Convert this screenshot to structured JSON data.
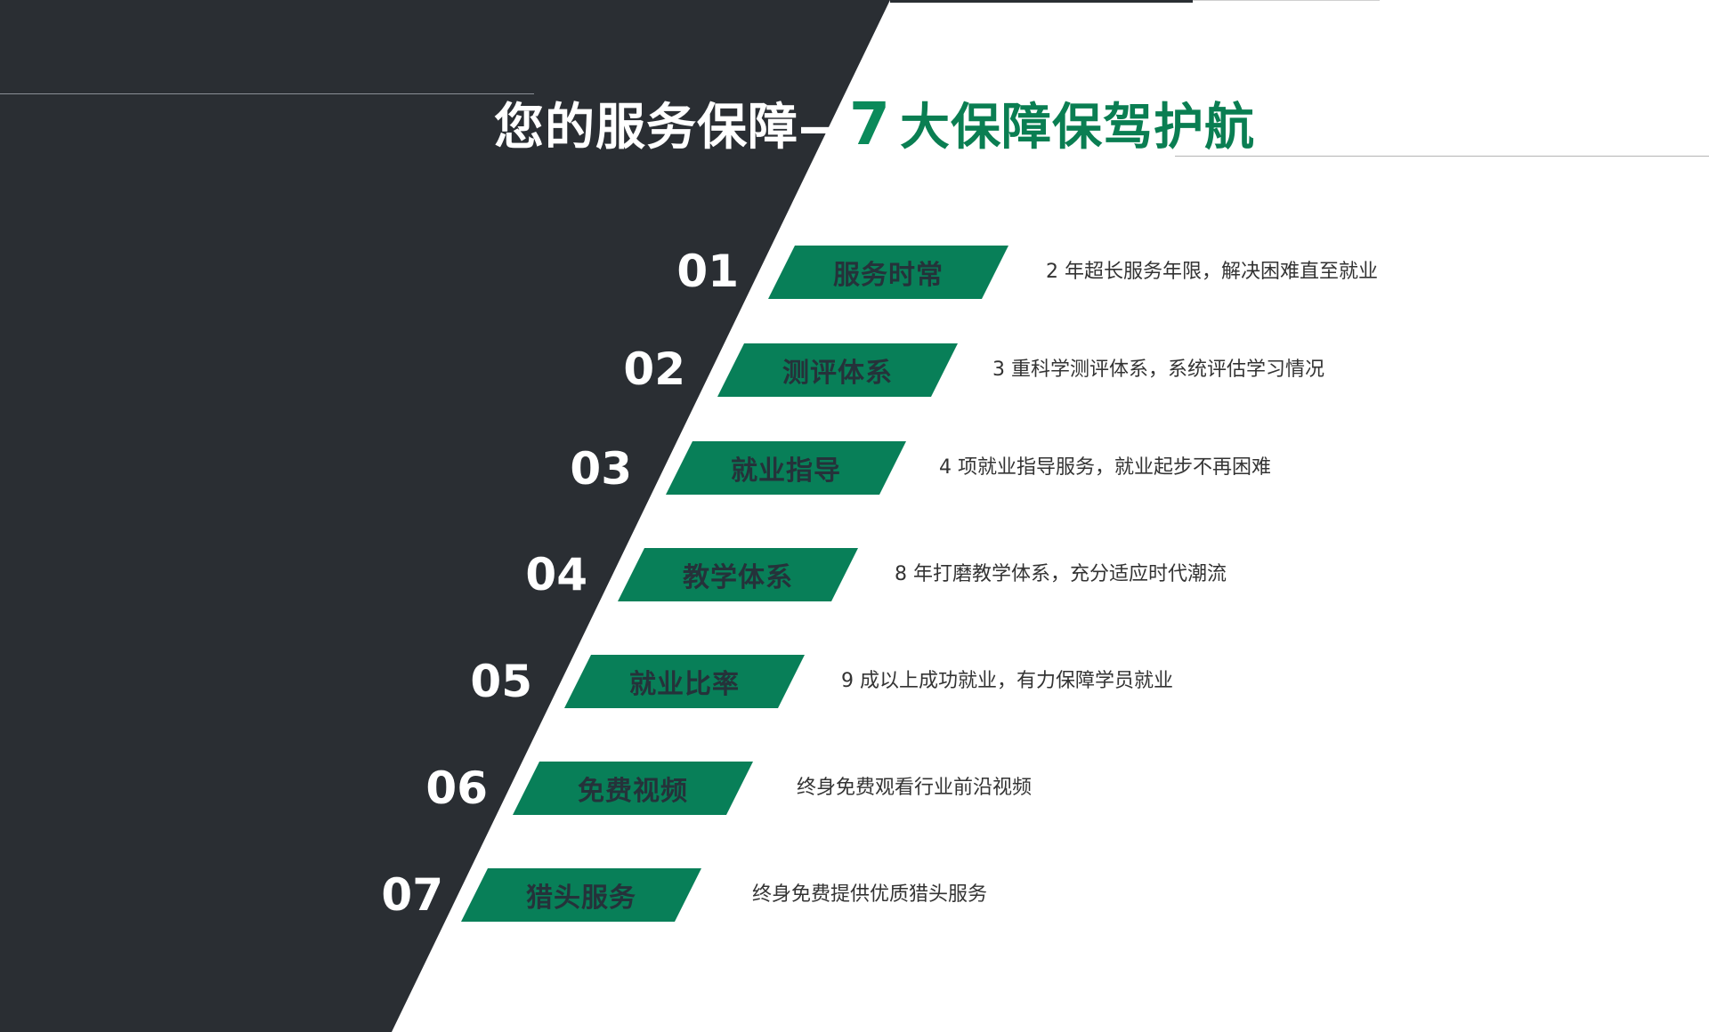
{
  "title": {
    "white_part": "您的服务保障—",
    "number": "7",
    "green_part": "大保障保驾护航"
  },
  "items": [
    {
      "num": "01",
      "tag": "服务时常",
      "desc": "2 年超长服务年限，解决困难直至就业"
    },
    {
      "num": "02",
      "tag": "测评体系",
      "desc": "3 重科学测评体系，系统评估学习情况"
    },
    {
      "num": "03",
      "tag": "就业指导",
      "desc": "4 项就业指导服务，就业起步不再困难"
    },
    {
      "num": "04",
      "tag": "教学体系",
      "desc": "8 年打磨教学体系，充分适应时代潮流"
    },
    {
      "num": "05",
      "tag": "就业比率",
      "desc": "9 成以上成功就业，有力保障学员就业"
    },
    {
      "num": "06",
      "tag": "免费视频",
      "desc": "终身免费观看行业前沿视频"
    },
    {
      "num": "07",
      "tag": "猎头服务",
      "desc": "终身免费提供优质猎头服务"
    }
  ],
  "colors": {
    "dark_panel": "#2a2e33",
    "accent_green": "#087f58",
    "tag_text": "#25323a"
  }
}
